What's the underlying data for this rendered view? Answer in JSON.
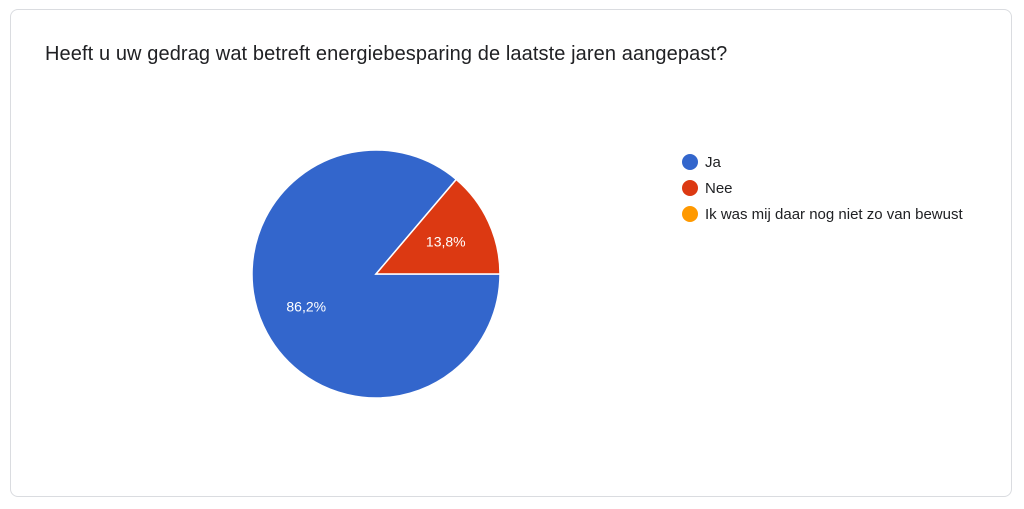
{
  "chart_data": {
    "type": "pie",
    "title": "Heeft u uw gedrag wat betreft energiebesparing de laatste jaren aangepast?",
    "categories": [
      "Ja",
      "Nee",
      "Ik was mij daar nog niet zo van bewust"
    ],
    "values": [
      86.2,
      13.8,
      0
    ],
    "data_labels": [
      "86,2%",
      "13,8%",
      ""
    ],
    "colors": [
      "#3366cc",
      "#dc3912",
      "#ff9900"
    ],
    "legend_position": "right"
  }
}
